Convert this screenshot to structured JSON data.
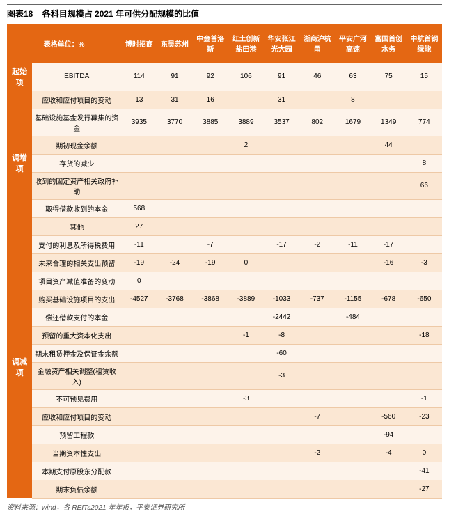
{
  "figure": {
    "label": "图表18",
    "title": "各科目规模占 2021 年可供分配规模的比值"
  },
  "unitLabel": "表格单位：%",
  "columns": [
    "博时招商",
    "东吴苏州",
    "中金普洛斯",
    "红土创新盐田港",
    "华安张江光大园",
    "浙商沪杭甬",
    "平安广河高速",
    "富国首创水务",
    "中航首钢绿能"
  ],
  "groups": [
    {
      "name": "起始项",
      "rows": [
        {
          "item": "EBITDA",
          "vals": [
            "114",
            "91",
            "92",
            "106",
            "91",
            "46",
            "63",
            "75",
            "15"
          ]
        }
      ]
    },
    {
      "name": "调增项",
      "rows": [
        {
          "item": "应收和应付项目的变动",
          "vals": [
            "13",
            "31",
            "16",
            "",
            "31",
            "",
            "8",
            "",
            ""
          ]
        },
        {
          "item": "基础设施基金发行募集的资金",
          "vals": [
            "3935",
            "3770",
            "3885",
            "3889",
            "3537",
            "802",
            "1679",
            "1349",
            "774"
          ]
        },
        {
          "item": "期初现金余额",
          "vals": [
            "",
            "",
            "",
            "2",
            "",
            "",
            "",
            "44",
            ""
          ]
        },
        {
          "item": "存货的减少",
          "vals": [
            "",
            "",
            "",
            "",
            "",
            "",
            "",
            "",
            "8"
          ]
        },
        {
          "item": "收到的固定资产相关政府补助",
          "vals": [
            "",
            "",
            "",
            "",
            "",
            "",
            "",
            "",
            "66"
          ]
        },
        {
          "item": "取得借款收到的本金",
          "vals": [
            "568",
            "",
            "",
            "",
            "",
            "",
            "",
            "",
            ""
          ]
        },
        {
          "item": "其他",
          "vals": [
            "27",
            "",
            "",
            "",
            "",
            "",
            "",
            "",
            ""
          ]
        }
      ]
    },
    {
      "name": "调减项",
      "rows": [
        {
          "item": "支付的利息及所得税费用",
          "vals": [
            "-11",
            "",
            "-7",
            "",
            "-17",
            "-2",
            "-11",
            "-17",
            ""
          ]
        },
        {
          "item": "未来合理的相关支出预留",
          "vals": [
            "-19",
            "-24",
            "-19",
            "0",
            "",
            "",
            "",
            "-16",
            "-3"
          ]
        },
        {
          "item": "项目资产减值准备的变动",
          "vals": [
            "0",
            "",
            "",
            "",
            "",
            "",
            "",
            "",
            ""
          ]
        },
        {
          "item": "购买基础设施项目的支出",
          "vals": [
            "-4527",
            "-3768",
            "-3868",
            "-3889",
            "-1033",
            "-737",
            "-1155",
            "-678",
            "-650"
          ]
        },
        {
          "item": "偿还借款支付的本金",
          "vals": [
            "",
            "",
            "",
            "",
            "-2442",
            "",
            "-484",
            "",
            ""
          ]
        },
        {
          "item": "预留的重大资本化支出",
          "vals": [
            "",
            "",
            "",
            "-1",
            "-8",
            "",
            "",
            "",
            "-18"
          ]
        },
        {
          "item": "期末租赁押金及保证金余额",
          "vals": [
            "",
            "",
            "",
            "",
            "-60",
            "",
            "",
            "",
            ""
          ]
        },
        {
          "item": "金融资产相关调整(租赁收入)",
          "vals": [
            "",
            "",
            "",
            "",
            "-3",
            "",
            "",
            "",
            ""
          ]
        },
        {
          "item": "不可预见费用",
          "vals": [
            "",
            "",
            "",
            "-3",
            "",
            "",
            "",
            "",
            "-1"
          ]
        },
        {
          "item": "应收和应付项目的变动",
          "vals": [
            "",
            "",
            "",
            "",
            "",
            "-7",
            "",
            "-560",
            "-23"
          ]
        },
        {
          "item": "预留工程款",
          "vals": [
            "",
            "",
            "",
            "",
            "",
            "",
            "",
            "-94",
            ""
          ]
        },
        {
          "item": "当期资本性支出",
          "vals": [
            "",
            "",
            "",
            "",
            "",
            "-2",
            "",
            "-4",
            "0"
          ]
        },
        {
          "item": "本期支付原股东分配款",
          "vals": [
            "",
            "",
            "",
            "",
            "",
            "",
            "",
            "",
            "-41"
          ]
        },
        {
          "item": "期末负债余额",
          "vals": [
            "",
            "",
            "",
            "",
            "",
            "",
            "",
            "",
            "-27"
          ]
        }
      ]
    }
  ],
  "sourceNote": "资料来源：wind，各 REITs2021 年年报，平安证券研究所",
  "colors": {
    "brand": "#e46713",
    "zebra1": "#fdf3ea",
    "zebra2": "#fbe7d3",
    "border": "#eec9a6"
  }
}
